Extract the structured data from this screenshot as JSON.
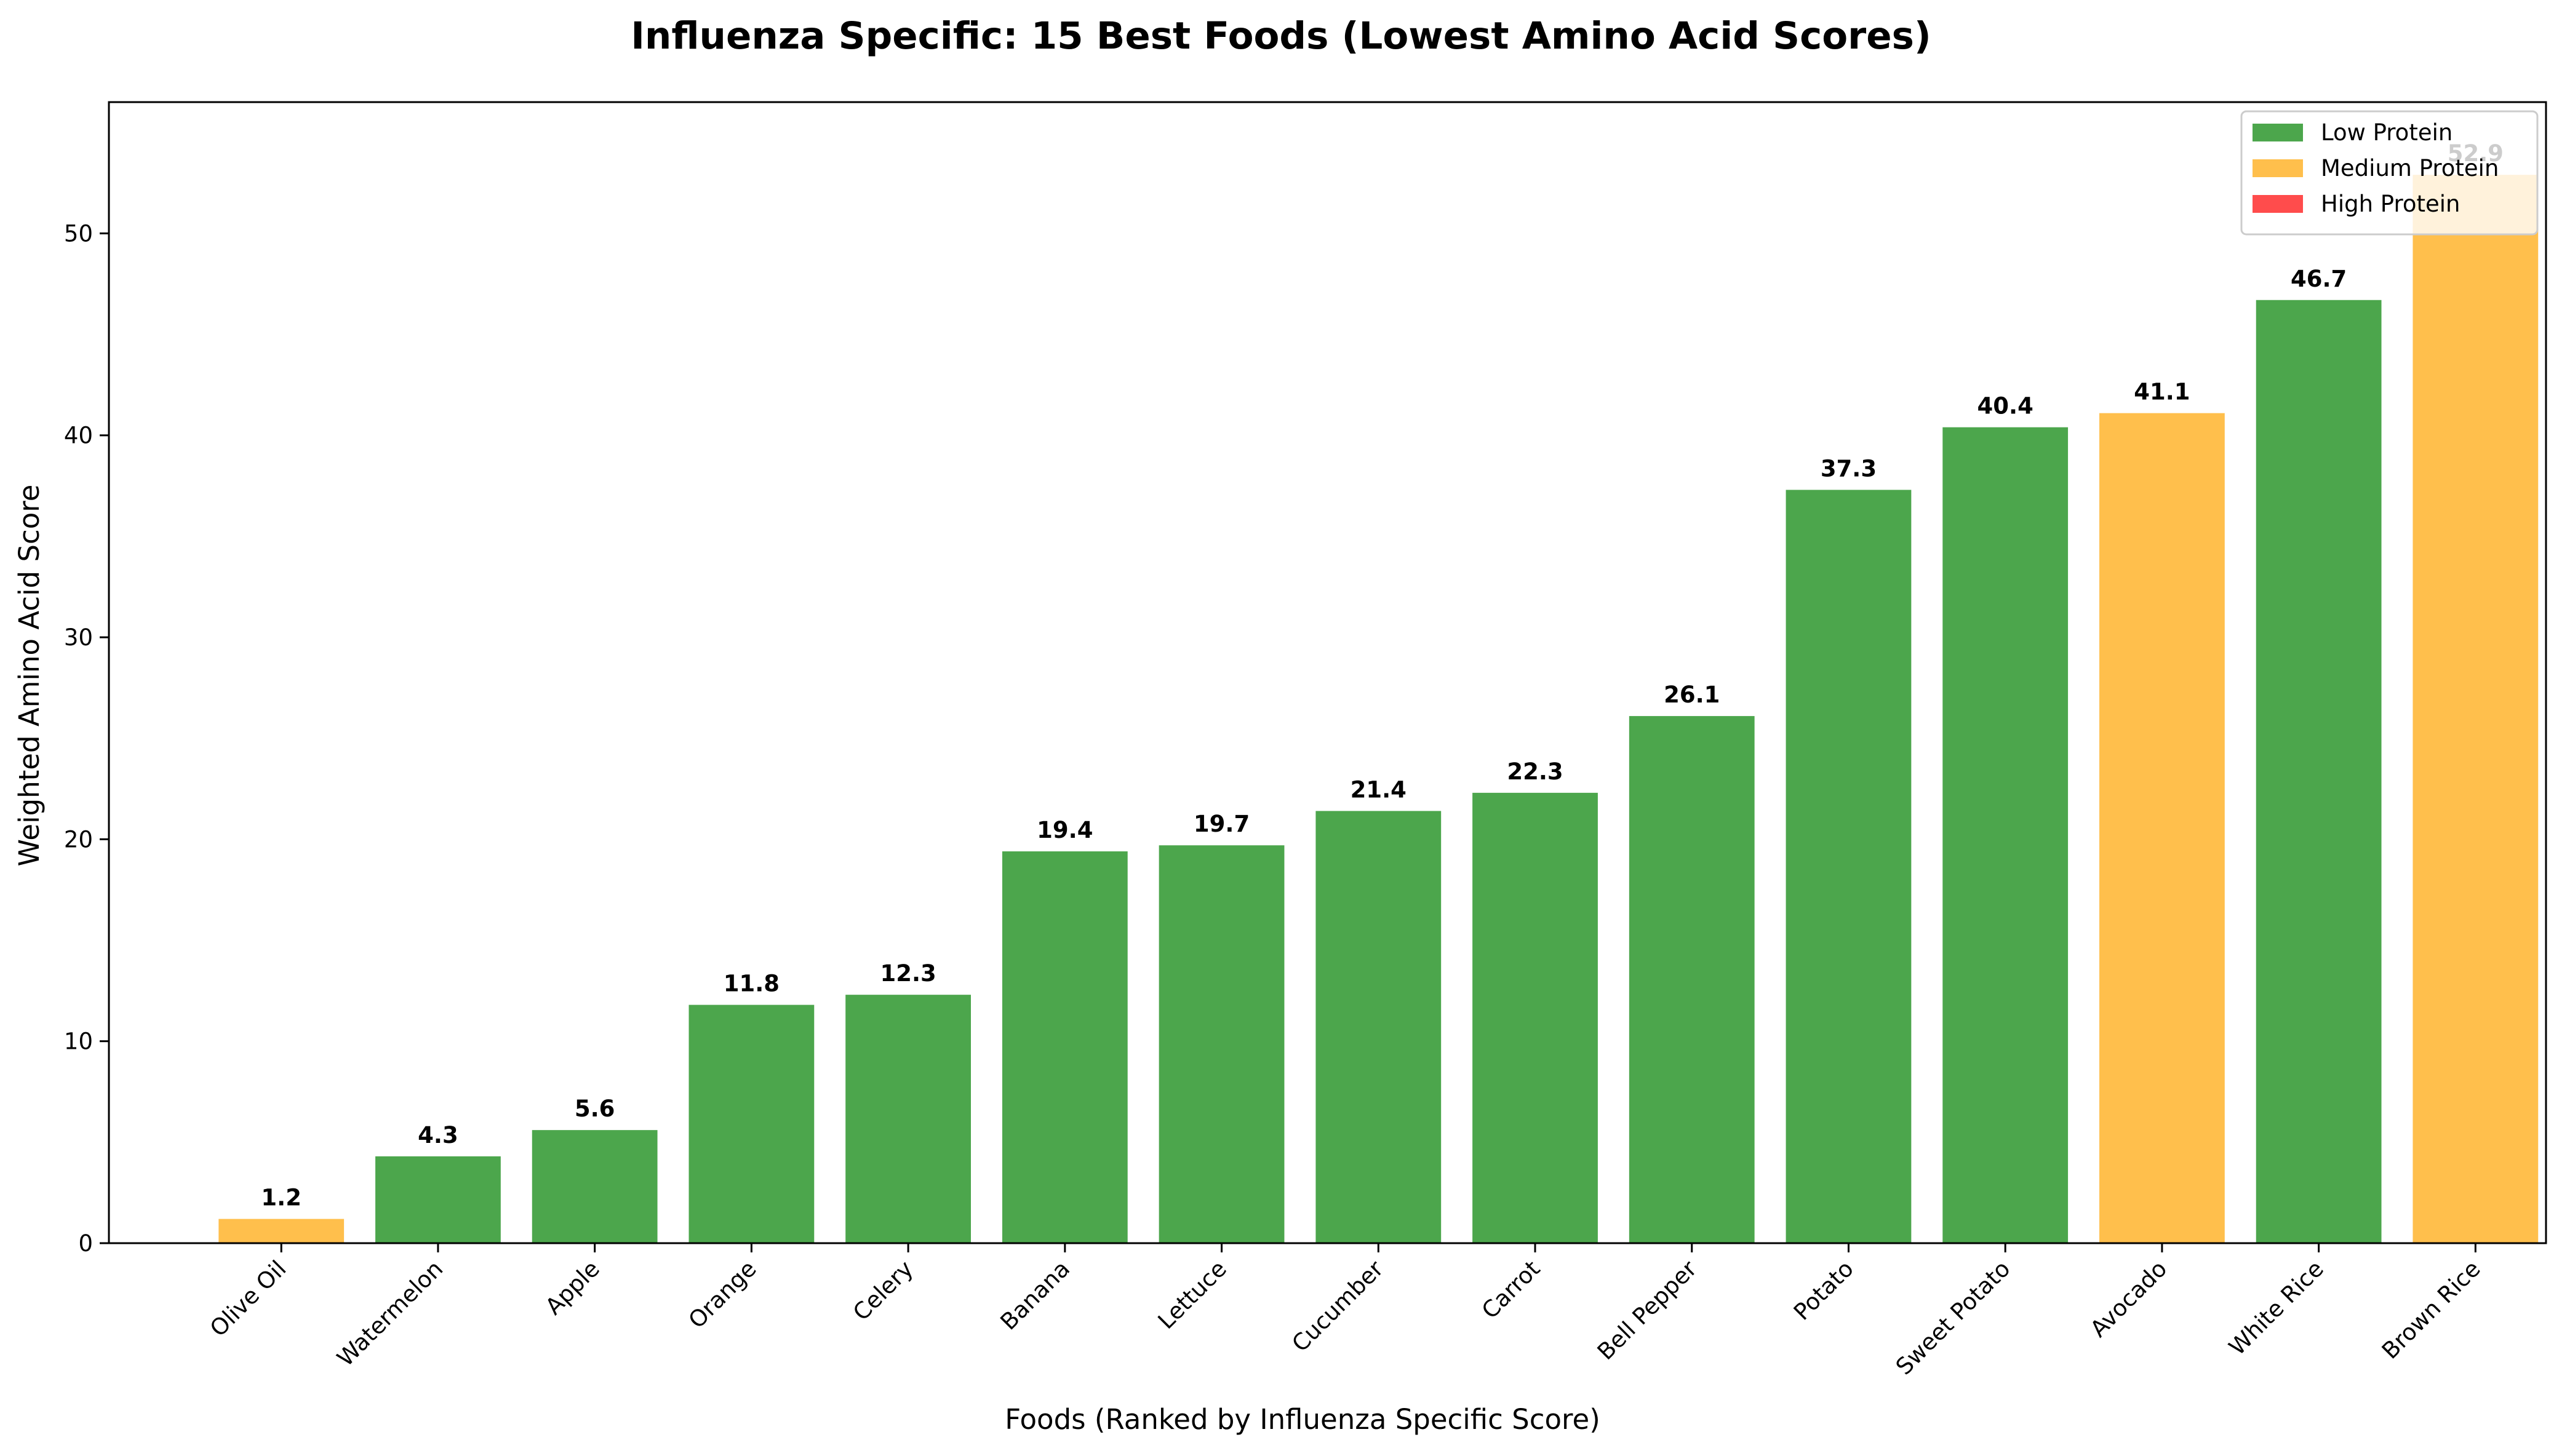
{
  "chart_data": {
    "type": "bar",
    "title": "Influenza Specific: 15 Best Foods (Lowest Amino Acid Scores)",
    "xlabel": "Foods (Ranked by Influenza Specific Score)",
    "ylabel": "Weighted Amino Acid Score",
    "ylim": [
      0,
      56.5
    ],
    "yticks": [
      0,
      10,
      20,
      30,
      40,
      50
    ],
    "categories": [
      "Olive Oil",
      "Watermelon",
      "Apple",
      "Orange",
      "Celery",
      "Banana",
      "Lettuce",
      "Cucumber",
      "Carrot",
      "Bell Pepper",
      "Potato",
      "Sweet Potato",
      "Avocado",
      "White Rice",
      "Brown Rice"
    ],
    "values": [
      1.2,
      4.3,
      5.6,
      11.8,
      12.3,
      19.4,
      19.7,
      21.4,
      22.3,
      26.1,
      37.3,
      40.4,
      41.1,
      46.7,
      52.9
    ],
    "value_labels": [
      "1.2",
      "4.3",
      "5.6",
      "11.8",
      "12.3",
      "19.4",
      "19.7",
      "21.4",
      "22.3",
      "26.1",
      "37.3",
      "40.4",
      "41.1",
      "46.7",
      "52.9"
    ],
    "protein_class": [
      "Medium Protein",
      "Low Protein",
      "Low Protein",
      "Low Protein",
      "Low Protein",
      "Low Protein",
      "Low Protein",
      "Low Protein",
      "Low Protein",
      "Low Protein",
      "Low Protein",
      "Low Protein",
      "Medium Protein",
      "Low Protein",
      "Medium Protein"
    ],
    "legend": {
      "placement": "top-right",
      "entries": [
        {
          "name": "Low Protein",
          "color": "#4ca64c"
        },
        {
          "name": "Medium Protein",
          "color": "#ffbf4c"
        },
        {
          "name": "High Protein",
          "color": "#ff4c4c"
        }
      ]
    },
    "grid": false
  }
}
